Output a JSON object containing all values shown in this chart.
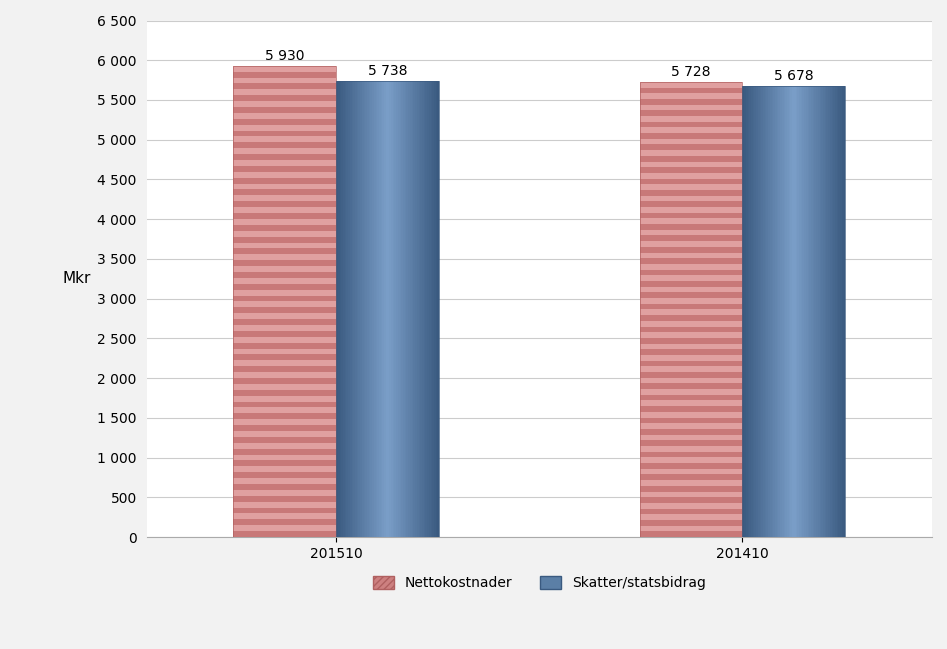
{
  "categories": [
    "201510",
    "201410"
  ],
  "nettokostnader": [
    5930,
    5728
  ],
  "skatter": [
    5738,
    5678
  ],
  "bar_color_netto_base": "#cd7070",
  "bar_color_netto_stripe": "#e8a0a0",
  "bar_color_skatt_mid": "#6080b0",
  "bar_color_skatt_dark": "#3d5c88",
  "bar_color_skatt_light": "#7a9cc8",
  "ylabel": "Mkr",
  "ylim": [
    0,
    6500
  ],
  "yticks": [
    0,
    500,
    1000,
    1500,
    2000,
    2500,
    3000,
    3500,
    4000,
    4500,
    5000,
    5500,
    6000,
    6500
  ],
  "legend_netto": "Nettokostnader",
  "legend_skatt": "Skatter/statsbidrag",
  "bar_width": 0.38,
  "background_color": "#f2f2f2",
  "plot_bg_color": "#ffffff",
  "grid_color": "#cccccc",
  "label_fontsize": 10,
  "tick_fontsize": 10,
  "ylabel_fontsize": 11,
  "group_centers": [
    1.0,
    2.5
  ]
}
